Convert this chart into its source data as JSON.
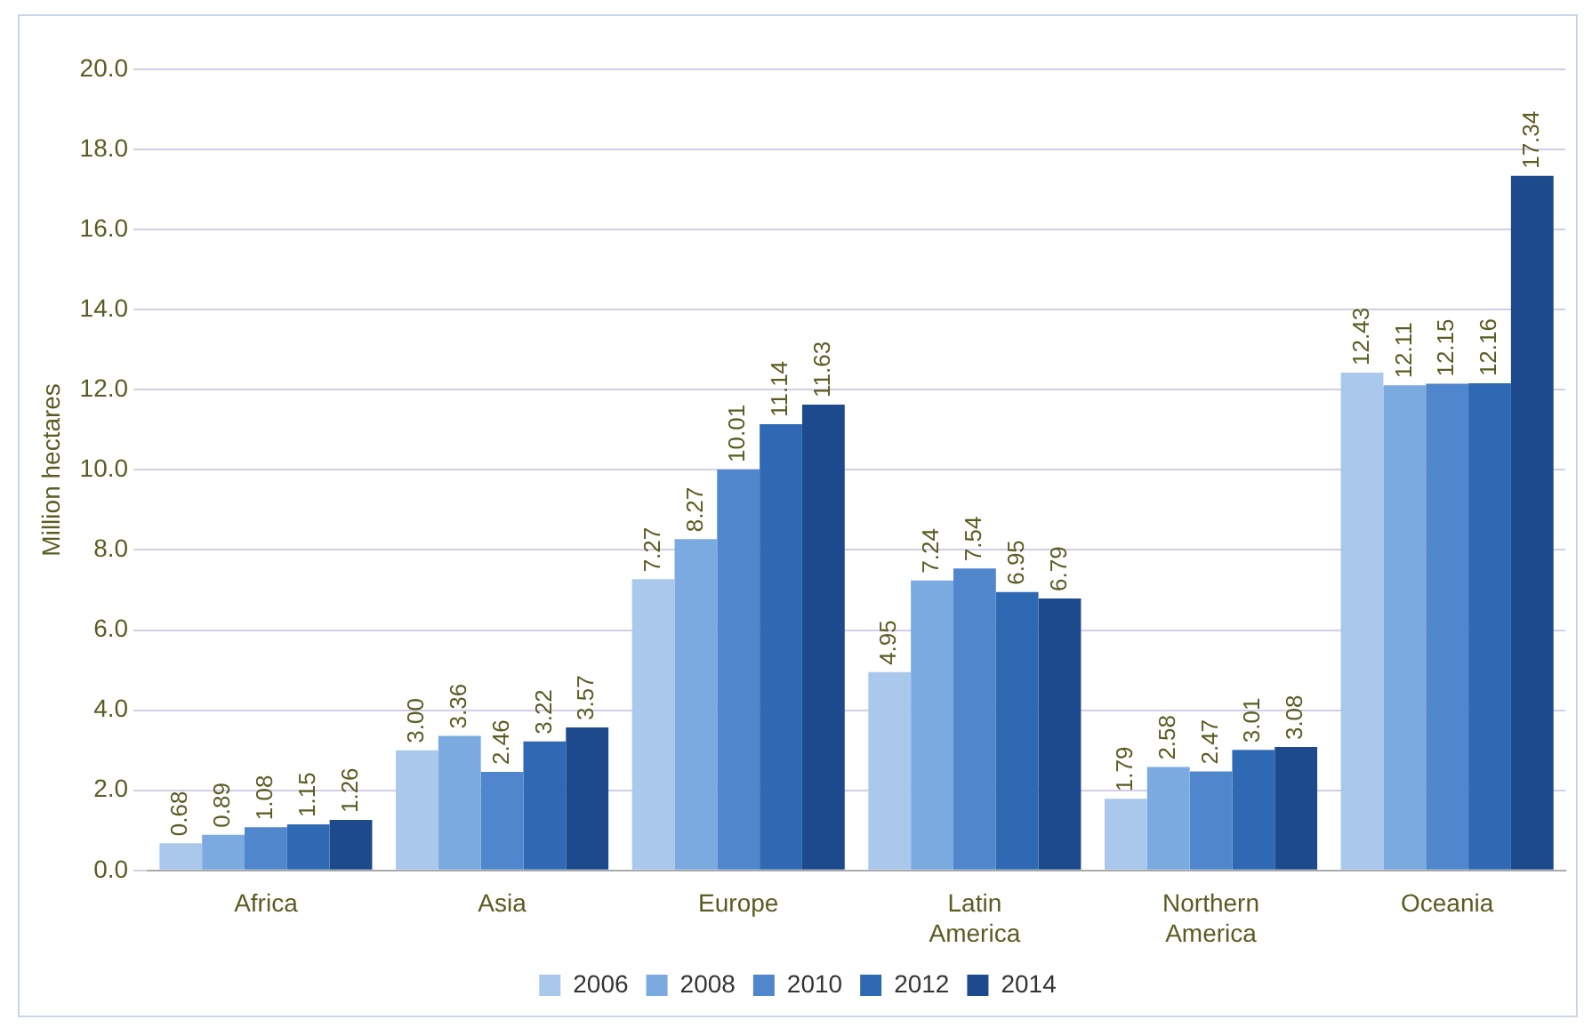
{
  "chart_data": {
    "type": "bar",
    "ylabel": "Million hectares",
    "categories": [
      "Africa",
      "Asia",
      "Europe",
      "Latin America",
      "Northern America",
      "Oceania"
    ],
    "series": [
      {
        "name": "2006",
        "color": "#a9c8ec",
        "values": [
          0.68,
          3.0,
          7.27,
          4.95,
          1.79,
          12.43
        ],
        "value_labels": [
          "0.68",
          "3.00",
          "7.27",
          "4.95",
          "1.79",
          "12.43"
        ]
      },
      {
        "name": "2008",
        "color": "#7aaae0",
        "values": [
          0.89,
          3.36,
          8.27,
          7.24,
          2.58,
          12.11
        ],
        "value_labels": [
          "0.89",
          "3.36",
          "8.27",
          "7.24",
          "2.58",
          "12.11"
        ]
      },
      {
        "name": "2010",
        "color": "#4f86cc",
        "values": [
          1.08,
          2.46,
          10.01,
          7.54,
          2.47,
          12.15
        ],
        "value_labels": [
          "1.08",
          "2.46",
          "10.01",
          "7.54",
          "2.47",
          "12.15"
        ]
      },
      {
        "name": "2012",
        "color": "#3069b3",
        "values": [
          1.15,
          3.22,
          11.14,
          6.95,
          3.01,
          12.16
        ],
        "value_labels": [
          "1.15",
          "3.22",
          "11.14",
          "6.95",
          "3.01",
          "12.16"
        ]
      },
      {
        "name": "2014",
        "color": "#1c4a8c",
        "values": [
          1.26,
          3.57,
          11.63,
          6.79,
          3.08,
          17.34
        ],
        "value_labels": [
          "1.26",
          "3.57",
          "11.63",
          "6.79",
          "3.08",
          "17.34"
        ]
      }
    ],
    "ylim": [
      0,
      20
    ],
    "yticks": [
      {
        "value": 0,
        "label": "0.0"
      },
      {
        "value": 2,
        "label": "2.0"
      },
      {
        "value": 4,
        "label": "4.0"
      },
      {
        "value": 6,
        "label": "6.0"
      },
      {
        "value": 8,
        "label": "8.0"
      },
      {
        "value": 10,
        "label": "10.0"
      },
      {
        "value": 12,
        "label": "12.0"
      },
      {
        "value": 14,
        "label": "14.0"
      },
      {
        "value": 16,
        "label": "16.0"
      },
      {
        "value": 18,
        "label": "18.0"
      },
      {
        "value": 20,
        "label": "20.0"
      }
    ],
    "grid": "y",
    "legend": "bottom"
  }
}
